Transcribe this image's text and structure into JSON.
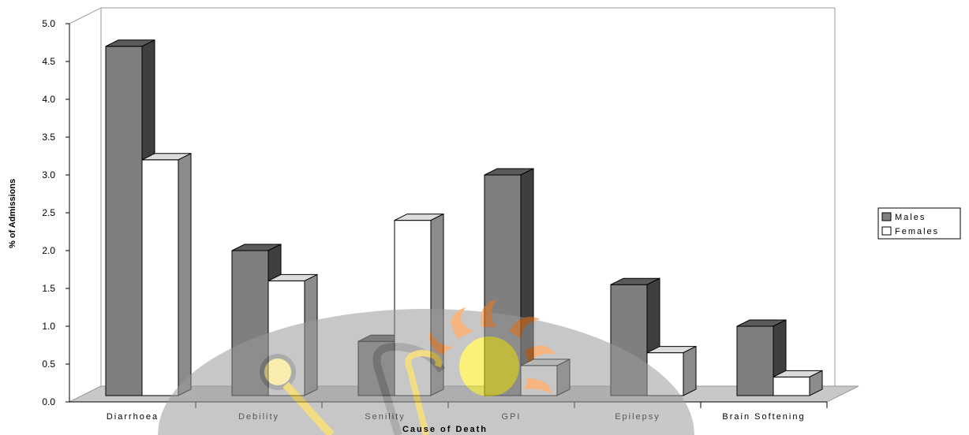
{
  "chart_data": {
    "type": "bar",
    "title": "",
    "xlabel": "Cause of Death",
    "ylabel": "% of Admissions",
    "ylim": [
      0,
      5
    ],
    "yticks": [
      "0.0",
      "0.5",
      "1.0",
      "1.5",
      "2.0",
      "2.5",
      "3.0",
      "3.5",
      "4.0",
      "4.5",
      "5.0"
    ],
    "categories": [
      "Diarrhoea",
      "Debility",
      "Senility",
      "GPI",
      "Epilepsy",
      "Brain Softening"
    ],
    "series": [
      {
        "name": "Males",
        "values": [
          4.7,
          2.0,
          0.8,
          3.0,
          1.55,
          1.0
        ]
      },
      {
        "name": "Females",
        "values": [
          3.2,
          1.6,
          2.4,
          0.48,
          0.65,
          0.33
        ]
      }
    ],
    "legend": "right",
    "grid": false,
    "colors": {
      "Males": "#7f7f7f",
      "Females": "#ffffff"
    }
  }
}
